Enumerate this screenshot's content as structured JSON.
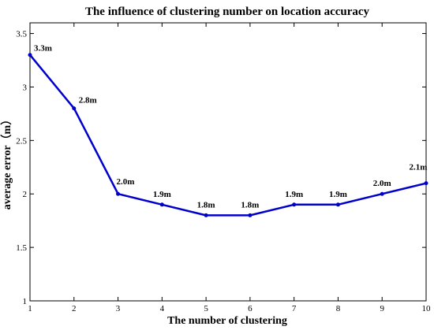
{
  "chart_data": {
    "type": "line",
    "title": "The influence of clustering number on location accuracy",
    "xlabel": "The number of clustering",
    "ylabel": "average error（m）",
    "x": [
      1,
      2,
      3,
      4,
      5,
      6,
      7,
      8,
      9,
      10
    ],
    "xlim": [
      1,
      10
    ],
    "ylim": [
      1,
      3.6
    ],
    "x_ticks": [
      "1",
      "2",
      "3",
      "4",
      "5",
      "6",
      "7",
      "8",
      "9",
      "10"
    ],
    "y_ticks": [
      "1",
      "1.5",
      "2",
      "2.5",
      "3",
      "3.5"
    ],
    "y_tick_values": [
      1,
      1.5,
      2,
      2.5,
      3,
      3.5
    ],
    "series": [
      {
        "values": [
          3.3,
          2.8,
          2.0,
          1.9,
          1.8,
          1.8,
          1.9,
          1.9,
          2.0,
          2.1
        ],
        "data_labels": [
          "3.3m",
          "2.8m",
          "2.0m",
          "1.9m",
          "1.8m",
          "1.8m",
          "1.9m",
          "1.9m",
          "2.0m",
          "2.1m"
        ],
        "color": "#0000cc"
      }
    ],
    "grid": false,
    "legend": "none"
  }
}
